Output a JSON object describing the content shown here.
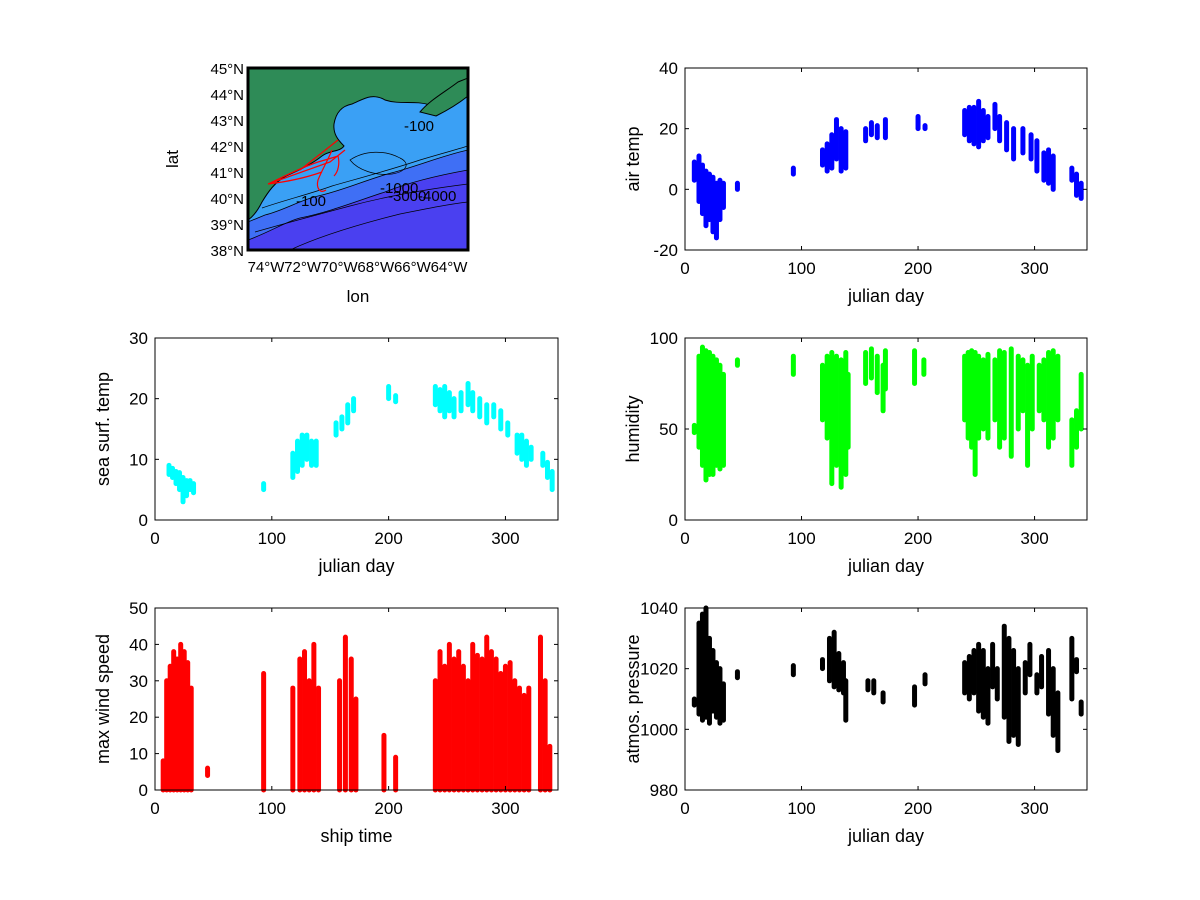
{
  "figure": {
    "background": "#ffffff"
  },
  "chart_data": [
    {
      "type": "map",
      "xlabel": "lon",
      "ylabel": "lat",
      "x_ticks": [
        "74°W",
        "72°W",
        "70°W",
        "68°W",
        "66°W",
        "64°W"
      ],
      "y_ticks": [
        "38°N",
        "39°N",
        "40°N",
        "41°N",
        "42°N",
        "43°N",
        "44°N",
        "45°N"
      ],
      "lon_range": [
        -75,
        -63
      ],
      "lat_range": [
        38,
        45
      ],
      "contour_labels": [
        "-100",
        "-100",
        "-1000",
        "-3000",
        "-4000"
      ],
      "colors": {
        "land": "#2e8b57",
        "shelf": "#3aa0f5",
        "slope": "#3f6ff5",
        "deep": "#4a40f0",
        "track": "#ff0000"
      }
    },
    {
      "type": "scatter",
      "xlabel": "julian day",
      "ylabel": "air temp",
      "xlim": [
        0,
        345
      ],
      "ylim": [
        -20,
        40
      ],
      "x_ticks": [
        0,
        100,
        200,
        300
      ],
      "y_ticks": [
        -20,
        0,
        20,
        40
      ],
      "color": "#0000ff",
      "segments": [
        [
          8,
          3,
          9
        ],
        [
          12,
          -4,
          11
        ],
        [
          15,
          -8,
          8
        ],
        [
          18,
          -12,
          6
        ],
        [
          21,
          -10,
          5
        ],
        [
          24,
          -14,
          4
        ],
        [
          27,
          -16,
          2
        ],
        [
          30,
          -10,
          3
        ],
        [
          33,
          -6,
          2
        ],
        [
          45,
          0,
          2
        ],
        [
          93,
          5,
          7
        ],
        [
          118,
          8,
          13
        ],
        [
          122,
          6,
          15
        ],
        [
          126,
          7,
          18
        ],
        [
          130,
          10,
          23
        ],
        [
          134,
          6,
          20
        ],
        [
          138,
          7,
          19
        ],
        [
          155,
          16,
          20
        ],
        [
          160,
          18,
          22
        ],
        [
          165,
          17,
          21
        ],
        [
          172,
          17,
          23
        ],
        [
          200,
          20,
          24
        ],
        [
          206,
          20,
          21
        ],
        [
          240,
          18,
          26
        ],
        [
          244,
          16,
          27
        ],
        [
          248,
          15,
          27
        ],
        [
          252,
          14,
          29
        ],
        [
          256,
          16,
          26
        ],
        [
          260,
          17,
          24
        ],
        [
          266,
          20,
          28
        ],
        [
          270,
          16,
          24
        ],
        [
          276,
          13,
          22
        ],
        [
          282,
          10,
          20
        ],
        [
          290,
          12,
          20
        ],
        [
          297,
          10,
          18
        ],
        [
          302,
          6,
          16
        ],
        [
          308,
          3,
          12
        ],
        [
          312,
          2,
          13
        ],
        [
          316,
          0,
          11
        ],
        [
          332,
          3,
          7
        ],
        [
          336,
          -2,
          5
        ],
        [
          340,
          -3,
          2
        ]
      ]
    },
    {
      "type": "scatter",
      "xlabel": "julian day",
      "ylabel": "sea surf. temp",
      "xlim": [
        0,
        345
      ],
      "ylim": [
        0,
        30
      ],
      "x_ticks": [
        0,
        100,
        200,
        300
      ],
      "y_ticks": [
        0,
        10,
        20,
        30
      ],
      "color": "#00ffff",
      "segments": [
        [
          12,
          7.5,
          9
        ],
        [
          15,
          7,
          8.5
        ],
        [
          18,
          6,
          8
        ],
        [
          21,
          5,
          7.8
        ],
        [
          24,
          3,
          7
        ],
        [
          27,
          4,
          6.5
        ],
        [
          30,
          5,
          6.5
        ],
        [
          33,
          4.5,
          6
        ],
        [
          93,
          5,
          6
        ],
        [
          118,
          7,
          11
        ],
        [
          122,
          8,
          13
        ],
        [
          126,
          9,
          14
        ],
        [
          130,
          10,
          14
        ],
        [
          134,
          9,
          13
        ],
        [
          138,
          9,
          13
        ],
        [
          155,
          14,
          16
        ],
        [
          160,
          15,
          17
        ],
        [
          165,
          16,
          19
        ],
        [
          170,
          18,
          20
        ],
        [
          200,
          20,
          22
        ],
        [
          206,
          19.5,
          20.5
        ],
        [
          240,
          19,
          22
        ],
        [
          244,
          18,
          21.5
        ],
        [
          248,
          17,
          22
        ],
        [
          252,
          18,
          21
        ],
        [
          256,
          17,
          20
        ],
        [
          262,
          18,
          21
        ],
        [
          268,
          19,
          22.5
        ],
        [
          272,
          18,
          21
        ],
        [
          278,
          17,
          20
        ],
        [
          284,
          16,
          19
        ],
        [
          290,
          17,
          19
        ],
        [
          296,
          15,
          18
        ],
        [
          302,
          14,
          16
        ],
        [
          310,
          11,
          14
        ],
        [
          314,
          10,
          14
        ],
        [
          318,
          9,
          13
        ],
        [
          322,
          10,
          12
        ],
        [
          332,
          9,
          11
        ],
        [
          336,
          7,
          9.5
        ],
        [
          340,
          5,
          8
        ]
      ]
    },
    {
      "type": "scatter",
      "xlabel": "julian day",
      "ylabel": "humidity",
      "xlim": [
        0,
        345
      ],
      "ylim": [
        0,
        100
      ],
      "x_ticks": [
        0,
        100,
        200,
        300
      ],
      "y_ticks": [
        0,
        50,
        100
      ],
      "color": "#00ff00",
      "segments": [
        [
          8,
          48,
          52
        ],
        [
          12,
          40,
          90
        ],
        [
          15,
          30,
          95
        ],
        [
          18,
          22,
          93
        ],
        [
          21,
          25,
          92
        ],
        [
          24,
          25,
          90
        ],
        [
          27,
          30,
          88
        ],
        [
          30,
          28,
          85
        ],
        [
          33,
          30,
          80
        ],
        [
          45,
          85,
          88
        ],
        [
          93,
          80,
          90
        ],
        [
          118,
          55,
          85
        ],
        [
          122,
          45,
          90
        ],
        [
          126,
          20,
          92
        ],
        [
          130,
          30,
          90
        ],
        [
          134,
          18,
          88
        ],
        [
          138,
          25,
          92
        ],
        [
          140,
          40,
          80
        ],
        [
          155,
          75,
          92
        ],
        [
          160,
          78,
          94
        ],
        [
          165,
          70,
          90
        ],
        [
          170,
          60,
          85
        ],
        [
          172,
          72,
          93
        ],
        [
          197,
          75,
          93
        ],
        [
          205,
          80,
          88
        ],
        [
          240,
          55,
          90
        ],
        [
          243,
          45,
          92
        ],
        [
          246,
          40,
          93
        ],
        [
          249,
          25,
          92
        ],
        [
          252,
          45,
          90
        ],
        [
          256,
          50,
          88
        ],
        [
          260,
          45,
          91
        ],
        [
          266,
          55,
          88
        ],
        [
          270,
          40,
          93
        ],
        [
          274,
          45,
          92
        ],
        [
          280,
          35,
          94
        ],
        [
          286,
          50,
          90
        ],
        [
          290,
          60,
          88
        ],
        [
          294,
          30,
          85
        ],
        [
          298,
          50,
          90
        ],
        [
          304,
          60,
          85
        ],
        [
          308,
          55,
          88
        ],
        [
          312,
          40,
          92
        ],
        [
          316,
          45,
          93
        ],
        [
          320,
          55,
          90
        ],
        [
          332,
          30,
          55
        ],
        [
          336,
          40,
          60
        ],
        [
          340,
          50,
          80
        ]
      ]
    },
    {
      "type": "scatter",
      "xlabel": "ship time",
      "ylabel": "max wind speed",
      "xlim": [
        0,
        345
      ],
      "ylim": [
        0,
        50
      ],
      "x_ticks": [
        0,
        100,
        200,
        300
      ],
      "y_ticks": [
        0,
        10,
        20,
        30,
        40,
        50
      ],
      "color": "#ff0000",
      "segments": [
        [
          7,
          0,
          8
        ],
        [
          10,
          0,
          30
        ],
        [
          13,
          0,
          34
        ],
        [
          16,
          0,
          38
        ],
        [
          19,
          0,
          36
        ],
        [
          22,
          0,
          40
        ],
        [
          25,
          0,
          38
        ],
        [
          28,
          0,
          35
        ],
        [
          31,
          0,
          28
        ],
        [
          45,
          4,
          6
        ],
        [
          93,
          0,
          32
        ],
        [
          118,
          0,
          28
        ],
        [
          124,
          0,
          36
        ],
        [
          128,
          0,
          38
        ],
        [
          132,
          0,
          30
        ],
        [
          136,
          0,
          40
        ],
        [
          140,
          0,
          28
        ],
        [
          158,
          0,
          30
        ],
        [
          163,
          0,
          42
        ],
        [
          168,
          0,
          36
        ],
        [
          172,
          0,
          25
        ],
        [
          196,
          0,
          15
        ],
        [
          206,
          0,
          9
        ],
        [
          240,
          0,
          30
        ],
        [
          244,
          0,
          38
        ],
        [
          248,
          0,
          34
        ],
        [
          252,
          0,
          40
        ],
        [
          256,
          0,
          36
        ],
        [
          260,
          0,
          38
        ],
        [
          264,
          0,
          34
        ],
        [
          268,
          0,
          30
        ],
        [
          272,
          0,
          40
        ],
        [
          276,
          0,
          37
        ],
        [
          280,
          0,
          36
        ],
        [
          284,
          0,
          42
        ],
        [
          288,
          0,
          38
        ],
        [
          292,
          0,
          36
        ],
        [
          296,
          0,
          32
        ],
        [
          300,
          0,
          34
        ],
        [
          304,
          0,
          35
        ],
        [
          308,
          0,
          30
        ],
        [
          312,
          0,
          28
        ],
        [
          316,
          0,
          26
        ],
        [
          320,
          0,
          28
        ],
        [
          330,
          0,
          42
        ],
        [
          334,
          0,
          30
        ],
        [
          338,
          0,
          12
        ]
      ]
    },
    {
      "type": "scatter",
      "xlabel": "julian day",
      "ylabel": "atmos. pressure",
      "xlim": [
        0,
        345
      ],
      "ylim": [
        980,
        1040
      ],
      "x_ticks": [
        0,
        100,
        200,
        300
      ],
      "y_ticks": [
        980,
        1000,
        1020,
        1040
      ],
      "color": "#000000",
      "segments": [
        [
          8,
          1008,
          1010
        ],
        [
          12,
          1005,
          1035
        ],
        [
          15,
          1003,
          1038
        ],
        [
          18,
          1004,
          1040
        ],
        [
          21,
          1002,
          1030
        ],
        [
          24,
          1006,
          1026
        ],
        [
          27,
          1004,
          1022
        ],
        [
          30,
          1002,
          1020
        ],
        [
          33,
          1003,
          1015
        ],
        [
          45,
          1017,
          1019
        ],
        [
          93,
          1018,
          1021
        ],
        [
          118,
          1020,
          1023
        ],
        [
          124,
          1016,
          1030
        ],
        [
          128,
          1014,
          1032
        ],
        [
          132,
          1013,
          1025
        ],
        [
          136,
          1012,
          1022
        ],
        [
          138,
          1003,
          1016
        ],
        [
          157,
          1013,
          1016
        ],
        [
          162,
          1012,
          1016
        ],
        [
          170,
          1009,
          1012
        ],
        [
          197,
          1008,
          1014
        ],
        [
          206,
          1015,
          1018
        ],
        [
          240,
          1012,
          1022
        ],
        [
          244,
          1010,
          1024
        ],
        [
          248,
          1012,
          1026
        ],
        [
          252,
          1006,
          1028
        ],
        [
          256,
          1004,
          1026
        ],
        [
          260,
          1002,
          1020
        ],
        [
          264,
          1014,
          1028
        ],
        [
          268,
          1010,
          1020
        ],
        [
          274,
          1004,
          1034
        ],
        [
          278,
          996,
          1030
        ],
        [
          282,
          998,
          1026
        ],
        [
          286,
          995,
          1020
        ],
        [
          292,
          1012,
          1022
        ],
        [
          296,
          1018,
          1028
        ],
        [
          302,
          1012,
          1018
        ],
        [
          306,
          1014,
          1024
        ],
        [
          312,
          1005,
          1026
        ],
        [
          316,
          998,
          1020
        ],
        [
          320,
          993,
          1012
        ],
        [
          332,
          1010,
          1030
        ],
        [
          336,
          1019,
          1023
        ],
        [
          340,
          1005,
          1009
        ]
      ]
    }
  ]
}
